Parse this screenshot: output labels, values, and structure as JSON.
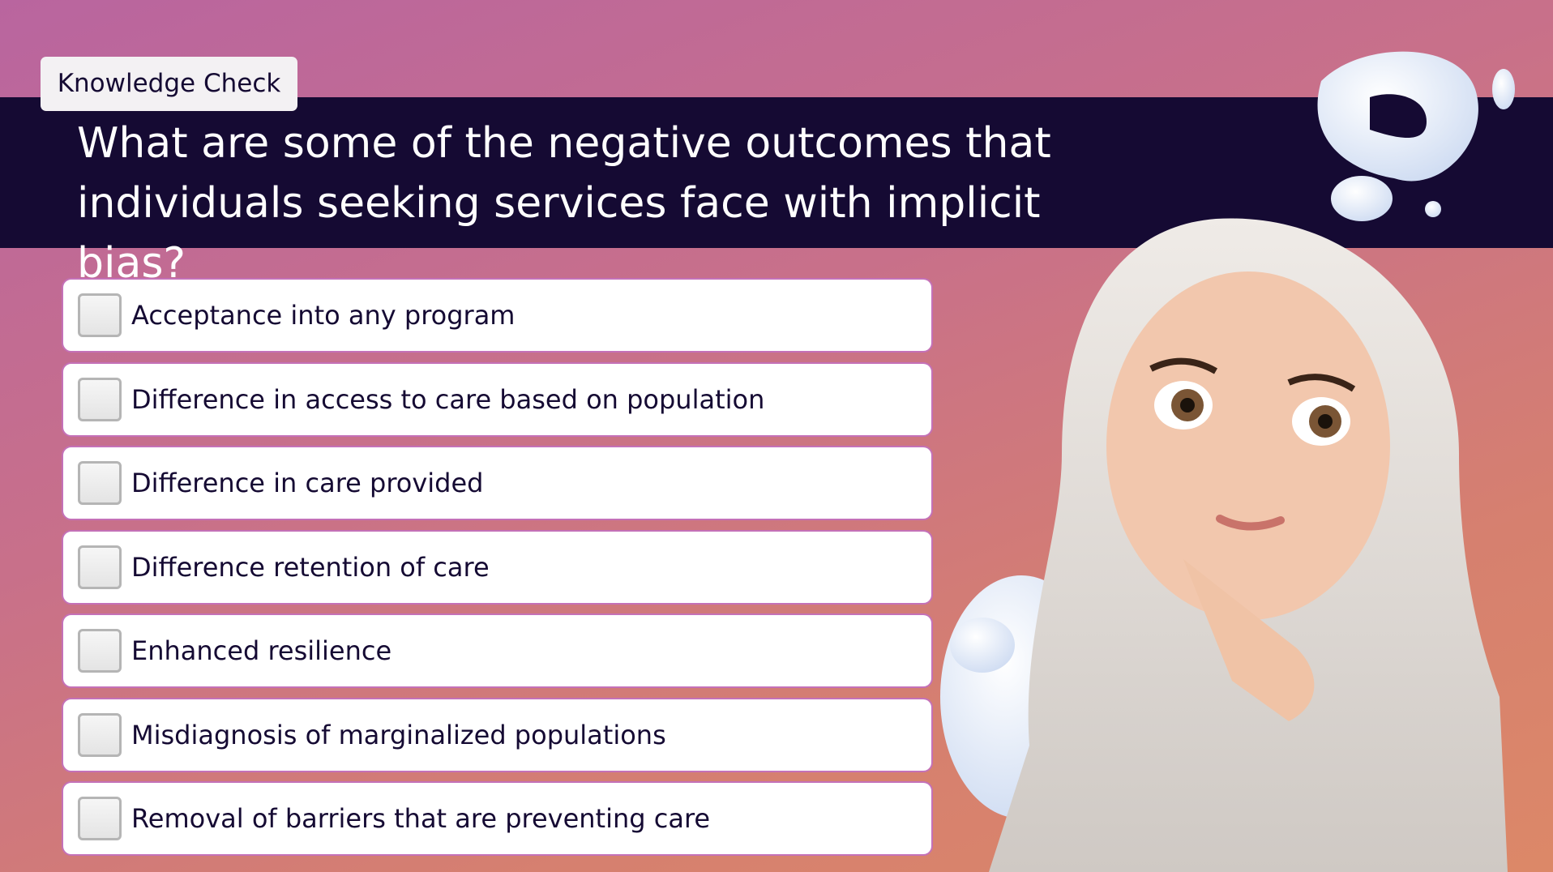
{
  "header": {
    "tag": "Knowledge Check",
    "question": "What are some of the negative outcomes that individuals seeking services face with implicit bias?"
  },
  "options": [
    "Acceptance into any program",
    "Difference in access to care based on population",
    "Difference in care provided",
    "Difference retention of care",
    "Enhanced resilience",
    "Misdiagnosis of marginalized populations",
    "Removal of barriers that are preventing care"
  ]
}
